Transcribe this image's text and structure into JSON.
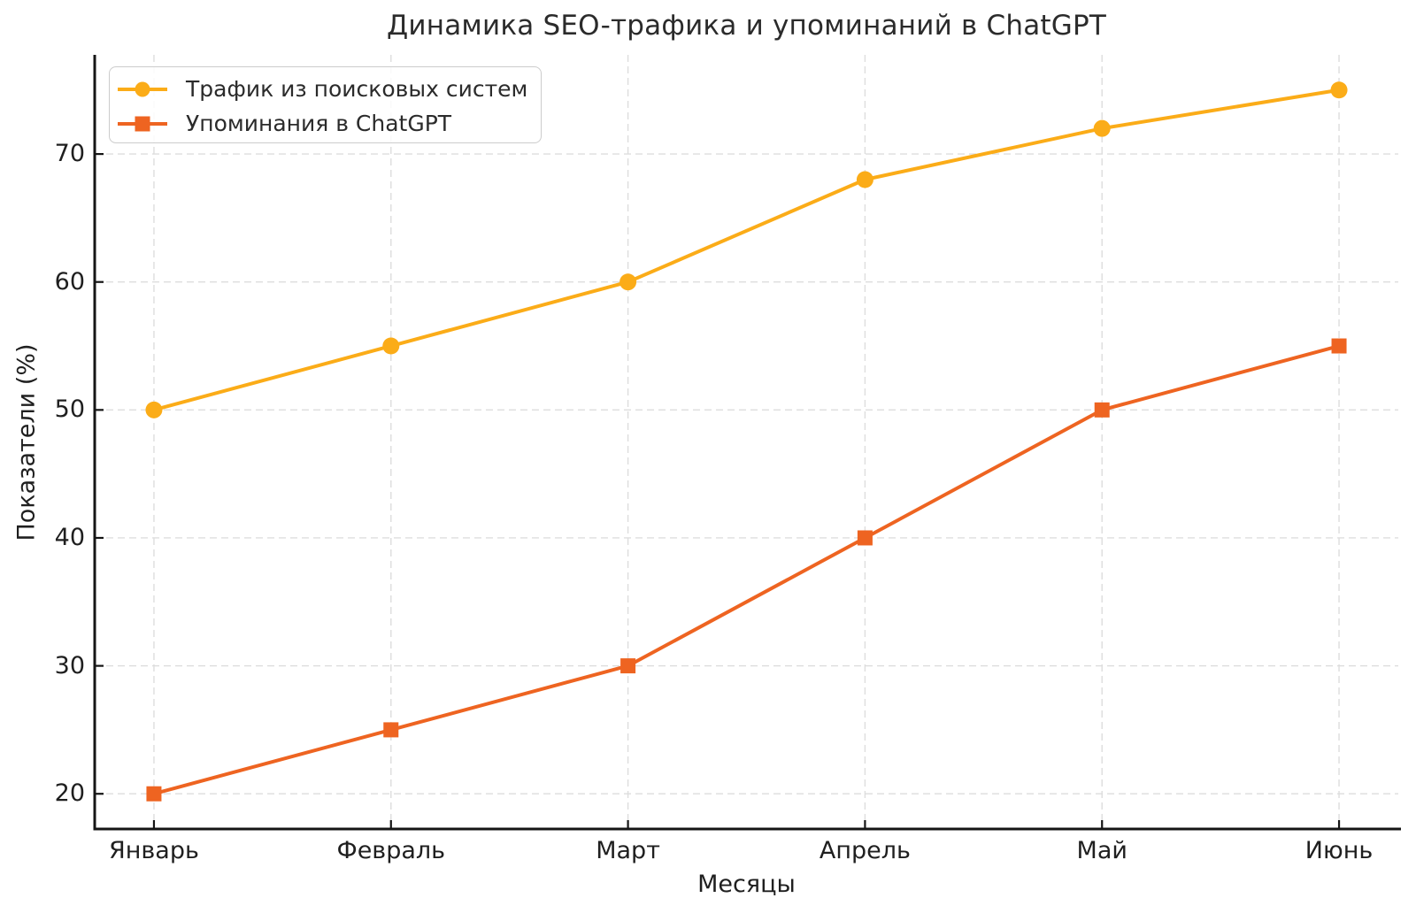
{
  "chart_data": {
    "type": "line",
    "title": "Динамика SEO-трафика и упоминаний в ChatGPT",
    "xlabel": "Месяцы",
    "ylabel": "Показатели (%)",
    "categories": [
      "Январь",
      "Февраль",
      "Март",
      "Апрель",
      "Май",
      "Июнь"
    ],
    "series": [
      {
        "name": "Трафик из поисковых систем",
        "values": [
          50,
          55,
          60,
          68,
          72,
          75
        ],
        "color": "#FBAC18",
        "marker": "circle"
      },
      {
        "name": "Упоминания в ChatGPT",
        "values": [
          20,
          25,
          30,
          40,
          50,
          55
        ],
        "color": "#EE6421",
        "marker": "square"
      }
    ],
    "yticks": [
      20,
      30,
      40,
      50,
      60,
      70
    ],
    "ylim": [
      17.25,
      77.75
    ],
    "xlim": [
      -0.25,
      5.25
    ],
    "grid": true,
    "grid_style": "dashed",
    "legend_position": "upper-left",
    "colors": {
      "background": "#ffffff",
      "grid": "#dddddd",
      "spine": "#151515",
      "tick": "#151515",
      "text": "#1f1f1f",
      "title": "#2b2b2b",
      "legend_border": "#cccccc"
    }
  }
}
